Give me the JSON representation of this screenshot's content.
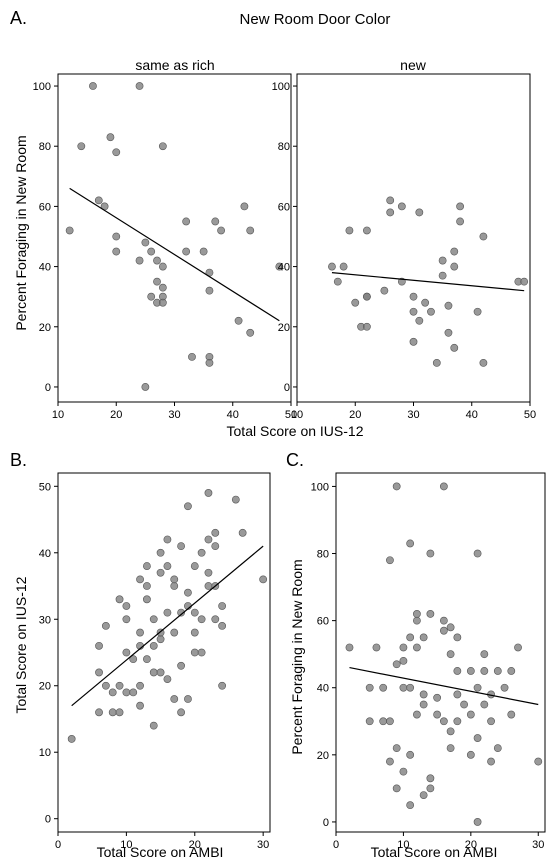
{
  "colors": {
    "point": "#7f7f7f",
    "point_stroke": "#555555",
    "line": "#000000",
    "frame": "#000000",
    "text": "#000000"
  },
  "chart_data": [
    {
      "type": "scatter",
      "panel_label": "A.",
      "title": "New Room Door Color",
      "xlabel": "Total Score on IUS-12",
      "ylabel": "Percent Foraging in New Room",
      "facets": [
        {
          "name": "same as rich",
          "xlim": [
            10,
            50
          ],
          "ylim": [
            -5,
            104
          ],
          "xticks": [
            10,
            20,
            30,
            40,
            50
          ],
          "yticks": [
            0,
            20,
            40,
            60,
            80,
            100
          ],
          "points": [
            [
              12,
              52
            ],
            [
              14,
              80
            ],
            [
              16,
              100
            ],
            [
              17,
              62
            ],
            [
              18,
              60
            ],
            [
              19,
              83
            ],
            [
              20,
              78
            ],
            [
              20,
              50
            ],
            [
              20,
              45
            ],
            [
              24,
              100
            ],
            [
              24,
              42
            ],
            [
              25,
              48
            ],
            [
              25,
              0
            ],
            [
              26,
              30
            ],
            [
              26,
              45
            ],
            [
              27,
              42
            ],
            [
              27,
              35
            ],
            [
              27,
              28
            ],
            [
              28,
              80
            ],
            [
              28,
              33
            ],
            [
              28,
              30
            ],
            [
              28,
              28
            ],
            [
              28,
              40
            ],
            [
              32,
              55
            ],
            [
              32,
              45
            ],
            [
              33,
              10
            ],
            [
              35,
              45
            ],
            [
              36,
              38
            ],
            [
              36,
              32
            ],
            [
              36,
              10
            ],
            [
              36,
              8
            ],
            [
              37,
              55
            ],
            [
              38,
              52
            ],
            [
              41,
              22
            ],
            [
              42,
              60
            ],
            [
              43,
              52
            ],
            [
              43,
              18
            ],
            [
              48,
              40
            ]
          ],
          "trend": [
            [
              12,
              66
            ],
            [
              48,
              22
            ]
          ]
        },
        {
          "name": "new",
          "xlim": [
            10,
            50
          ],
          "ylim": [
            -5,
            104
          ],
          "xticks": [
            10,
            20,
            30,
            40,
            50
          ],
          "yticks": [
            0,
            20,
            40,
            60,
            80,
            100
          ],
          "points": [
            [
              16,
              40
            ],
            [
              17,
              35
            ],
            [
              18,
              40
            ],
            [
              19,
              52
            ],
            [
              20,
              28
            ],
            [
              21,
              20
            ],
            [
              22,
              20
            ],
            [
              22,
              30
            ],
            [
              22,
              52
            ],
            [
              22,
              30
            ],
            [
              25,
              32
            ],
            [
              26,
              62
            ],
            [
              26,
              58
            ],
            [
              28,
              60
            ],
            [
              28,
              35
            ],
            [
              30,
              30
            ],
            [
              30,
              25
            ],
            [
              30,
              15
            ],
            [
              31,
              58
            ],
            [
              31,
              22
            ],
            [
              32,
              28
            ],
            [
              33,
              25
            ],
            [
              34,
              8
            ],
            [
              35,
              37
            ],
            [
              35,
              42
            ],
            [
              36,
              27
            ],
            [
              36,
              18
            ],
            [
              37,
              45
            ],
            [
              37,
              40
            ],
            [
              37,
              13
            ],
            [
              38,
              60
            ],
            [
              38,
              55
            ],
            [
              41,
              25
            ],
            [
              42,
              50
            ],
            [
              42,
              8
            ],
            [
              48,
              35
            ],
            [
              49,
              35
            ]
          ],
          "trend": [
            [
              16,
              38
            ],
            [
              49,
              32
            ]
          ]
        }
      ]
    },
    {
      "type": "scatter",
      "panel_label": "B.",
      "xlabel": "Total Score on AMBI",
      "ylabel": "Total Score on IUS-12",
      "xlim": [
        0,
        31
      ],
      "ylim": [
        -2,
        52
      ],
      "xticks": [
        0,
        10,
        20,
        30
      ],
      "yticks": [
        0,
        10,
        20,
        30,
        40,
        50
      ],
      "points": [
        [
          2,
          12
        ],
        [
          6,
          16
        ],
        [
          6,
          22
        ],
        [
          6,
          26
        ],
        [
          7,
          20
        ],
        [
          7,
          29
        ],
        [
          8,
          16
        ],
        [
          8,
          19
        ],
        [
          9,
          20
        ],
        [
          9,
          33
        ],
        [
          9,
          16
        ],
        [
          10,
          19
        ],
        [
          10,
          25
        ],
        [
          10,
          30
        ],
        [
          10,
          32
        ],
        [
          11,
          19
        ],
        [
          11,
          24
        ],
        [
          12,
          17
        ],
        [
          12,
          20
        ],
        [
          12,
          28
        ],
        [
          12,
          36
        ],
        [
          12,
          26
        ],
        [
          13,
          24
        ],
        [
          13,
          38
        ],
        [
          13,
          35
        ],
        [
          13,
          33
        ],
        [
          14,
          14
        ],
        [
          14,
          22
        ],
        [
          14,
          26
        ],
        [
          14,
          30
        ],
        [
          15,
          22
        ],
        [
          15,
          27
        ],
        [
          15,
          37
        ],
        [
          15,
          28
        ],
        [
          15,
          40
        ],
        [
          16,
          21
        ],
        [
          16,
          42
        ],
        [
          16,
          31
        ],
        [
          16,
          38
        ],
        [
          17,
          18
        ],
        [
          17,
          28
        ],
        [
          17,
          35
        ],
        [
          17,
          36
        ],
        [
          18,
          41
        ],
        [
          18,
          23
        ],
        [
          18,
          31
        ],
        [
          18,
          16
        ],
        [
          19,
          32
        ],
        [
          19,
          18
        ],
        [
          19,
          34
        ],
        [
          19,
          47
        ],
        [
          20,
          28
        ],
        [
          20,
          38
        ],
        [
          20,
          31
        ],
        [
          20,
          25
        ],
        [
          21,
          40
        ],
        [
          21,
          25
        ],
        [
          21,
          30
        ],
        [
          22,
          49
        ],
        [
          22,
          42
        ],
        [
          22,
          35
        ],
        [
          22,
          37
        ],
        [
          23,
          30
        ],
        [
          23,
          35
        ],
        [
          23,
          43
        ],
        [
          23,
          41
        ],
        [
          24,
          32
        ],
        [
          24,
          20
        ],
        [
          24,
          29
        ],
        [
          26,
          48
        ],
        [
          27,
          43
        ],
        [
          30,
          36
        ]
      ],
      "trend": [
        [
          2,
          17
        ],
        [
          30,
          41
        ]
      ]
    },
    {
      "type": "scatter",
      "panel_label": "C.",
      "xlabel": "Total Score on AMBI",
      "ylabel": "Percent Foraging in New Room",
      "xlim": [
        0,
        31
      ],
      "ylim": [
        -3,
        104
      ],
      "xticks": [
        0,
        10,
        20,
        30
      ],
      "yticks": [
        0,
        20,
        40,
        60,
        80,
        100
      ],
      "points": [
        [
          2,
          52
        ],
        [
          5,
          30
        ],
        [
          5,
          40
        ],
        [
          6,
          52
        ],
        [
          7,
          30
        ],
        [
          7,
          40
        ],
        [
          8,
          78
        ],
        [
          8,
          30
        ],
        [
          8,
          18
        ],
        [
          9,
          100
        ],
        [
          9,
          10
        ],
        [
          9,
          22
        ],
        [
          9,
          47
        ],
        [
          10,
          52
        ],
        [
          10,
          40
        ],
        [
          10,
          48
        ],
        [
          10,
          15
        ],
        [
          11,
          83
        ],
        [
          11,
          20
        ],
        [
          11,
          40
        ],
        [
          11,
          55
        ],
        [
          11,
          5
        ],
        [
          12,
          52
        ],
        [
          12,
          60
        ],
        [
          12,
          62
        ],
        [
          12,
          32
        ],
        [
          13,
          8
        ],
        [
          13,
          35
        ],
        [
          13,
          38
        ],
        [
          13,
          55
        ],
        [
          14,
          80
        ],
        [
          14,
          62
        ],
        [
          14,
          13
        ],
        [
          14,
          10
        ],
        [
          15,
          32
        ],
        [
          15,
          37
        ],
        [
          16,
          100
        ],
        [
          16,
          30
        ],
        [
          16,
          60
        ],
        [
          16,
          57
        ],
        [
          17,
          58
        ],
        [
          17,
          50
        ],
        [
          17,
          22
        ],
        [
          17,
          27
        ],
        [
          18,
          55
        ],
        [
          18,
          45
        ],
        [
          18,
          38
        ],
        [
          18,
          30
        ],
        [
          19,
          35
        ],
        [
          20,
          20
        ],
        [
          20,
          32
        ],
        [
          20,
          45
        ],
        [
          21,
          80
        ],
        [
          21,
          0
        ],
        [
          21,
          25
        ],
        [
          21,
          40
        ],
        [
          22,
          45
        ],
        [
          22,
          50
        ],
        [
          22,
          35
        ],
        [
          23,
          30
        ],
        [
          23,
          38
        ],
        [
          23,
          18
        ],
        [
          24,
          22
        ],
        [
          24,
          45
        ],
        [
          25,
          40
        ],
        [
          26,
          32
        ],
        [
          26,
          45
        ],
        [
          27,
          52
        ],
        [
          30,
          18
        ]
      ],
      "trend": [
        [
          2,
          46
        ],
        [
          30,
          35
        ]
      ]
    }
  ]
}
